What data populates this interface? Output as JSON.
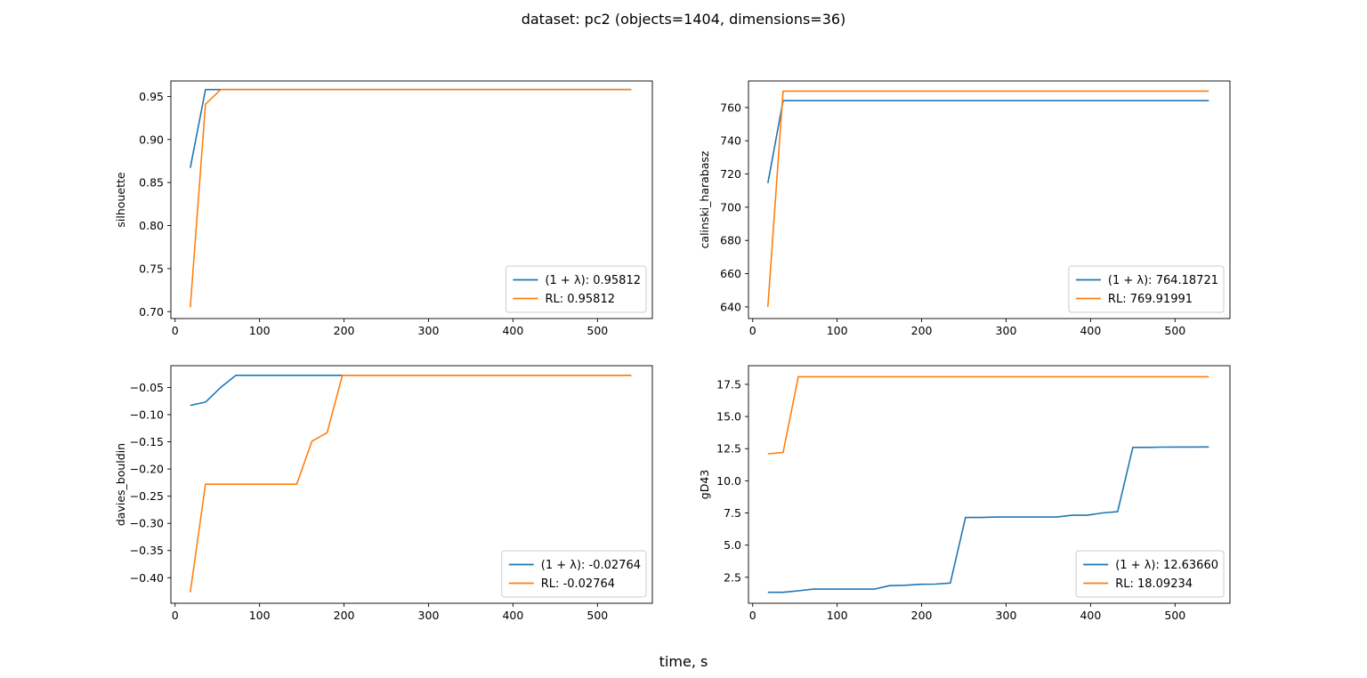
{
  "figure": {
    "suptitle": "dataset: pc2 (objects=1404, dimensions=36)",
    "xlabel": "time, s"
  },
  "colors": {
    "series1": "#1f77b4",
    "series2": "#ff7f0e"
  },
  "chart_data": [
    {
      "type": "line",
      "ylabel": "silhouette",
      "xlim": [
        -5,
        565
      ],
      "ylim": [
        0.692,
        0.968
      ],
      "xticks": [
        0,
        100,
        200,
        300,
        400,
        500
      ],
      "yticks": [
        0.7,
        0.75,
        0.8,
        0.85,
        0.9,
        0.95
      ],
      "ytick_labels": [
        "0.70",
        "0.75",
        "0.80",
        "0.85",
        "0.90",
        "0.95"
      ],
      "legend_loc": "lower right",
      "series": [
        {
          "name": "(1 + λ): 0.95812",
          "x": [
            18,
            36,
            54,
            72,
            540
          ],
          "y": [
            0.867,
            0.958,
            0.958,
            0.958,
            0.958
          ]
        },
        {
          "name": "RL: 0.95812",
          "x": [
            18,
            36,
            54,
            72,
            540
          ],
          "y": [
            0.705,
            0.941,
            0.958,
            0.958,
            0.958
          ]
        }
      ]
    },
    {
      "type": "line",
      "ylabel": "calinski_harabasz",
      "xlim": [
        -5,
        565
      ],
      "ylim": [
        633,
        776
      ],
      "xticks": [
        0,
        100,
        200,
        300,
        400,
        500
      ],
      "yticks": [
        640,
        660,
        680,
        700,
        720,
        740,
        760
      ],
      "ytick_labels": [
        "640",
        "660",
        "680",
        "700",
        "720",
        "740",
        "760"
      ],
      "legend_loc": "lower right",
      "series": [
        {
          "name": "(1 + λ): 764.18721",
          "x": [
            18,
            36,
            540
          ],
          "y": [
            714.5,
            764.19,
            764.19
          ]
        },
        {
          "name": "RL: 769.91991",
          "x": [
            18,
            36,
            540
          ],
          "y": [
            640.0,
            769.92,
            769.92
          ]
        }
      ]
    },
    {
      "type": "line",
      "ylabel": "davies_bouldin",
      "xlim": [
        -5,
        565
      ],
      "ylim": [
        -0.447,
        -0.01
      ],
      "xticks": [
        0,
        100,
        200,
        300,
        400,
        500
      ],
      "yticks": [
        -0.4,
        -0.35,
        -0.3,
        -0.25,
        -0.2,
        -0.15,
        -0.1,
        -0.05
      ],
      "ytick_labels": [
        "−0.40",
        "−0.35",
        "−0.30",
        "−0.25",
        "−0.20",
        "−0.15",
        "−0.10",
        "−0.05"
      ],
      "legend_loc": "lower right",
      "series": [
        {
          "name": "(1 + λ): -0.02764",
          "x": [
            18,
            36,
            54,
            72,
            540
          ],
          "y": [
            -0.083,
            -0.077,
            -0.05,
            -0.0276,
            -0.0276
          ]
        },
        {
          "name": "RL: -0.02764",
          "x": [
            18,
            36,
            54,
            144,
            162,
            180,
            198,
            540
          ],
          "y": [
            -0.427,
            -0.228,
            -0.228,
            -0.228,
            -0.149,
            -0.133,
            -0.0276,
            -0.0276
          ]
        }
      ]
    },
    {
      "type": "line",
      "ylabel": "gD43",
      "xlim": [
        -5,
        565
      ],
      "ylim": [
        0.48,
        18.95
      ],
      "xticks": [
        0,
        100,
        200,
        300,
        400,
        500
      ],
      "yticks": [
        2.5,
        5.0,
        7.5,
        10.0,
        12.5,
        15.0,
        17.5
      ],
      "ytick_labels": [
        "2.5",
        "5.0",
        "7.5",
        "10.0",
        "12.5",
        "15.0",
        "17.5"
      ],
      "legend_loc": "lower right",
      "series": [
        {
          "name": "(1 + λ): 12.63660",
          "x": [
            18,
            36,
            54,
            72,
            90,
            108,
            126,
            144,
            162,
            180,
            198,
            216,
            234,
            252,
            270,
            288,
            306,
            324,
            342,
            360,
            378,
            396,
            414,
            432,
            450,
            468,
            486,
            504,
            522,
            540
          ],
          "y": [
            1.33,
            1.33,
            1.45,
            1.58,
            1.58,
            1.58,
            1.58,
            1.58,
            1.85,
            1.88,
            1.95,
            1.97,
            2.05,
            7.15,
            7.15,
            7.18,
            7.18,
            7.18,
            7.18,
            7.18,
            7.32,
            7.32,
            7.5,
            7.6,
            12.6,
            12.6,
            12.62,
            12.63,
            12.63,
            12.6366
          ]
        },
        {
          "name": "RL: 18.09234",
          "x": [
            18,
            36,
            54,
            72,
            540
          ],
          "y": [
            12.1,
            12.2,
            18.09,
            18.09,
            18.09
          ]
        }
      ]
    }
  ]
}
